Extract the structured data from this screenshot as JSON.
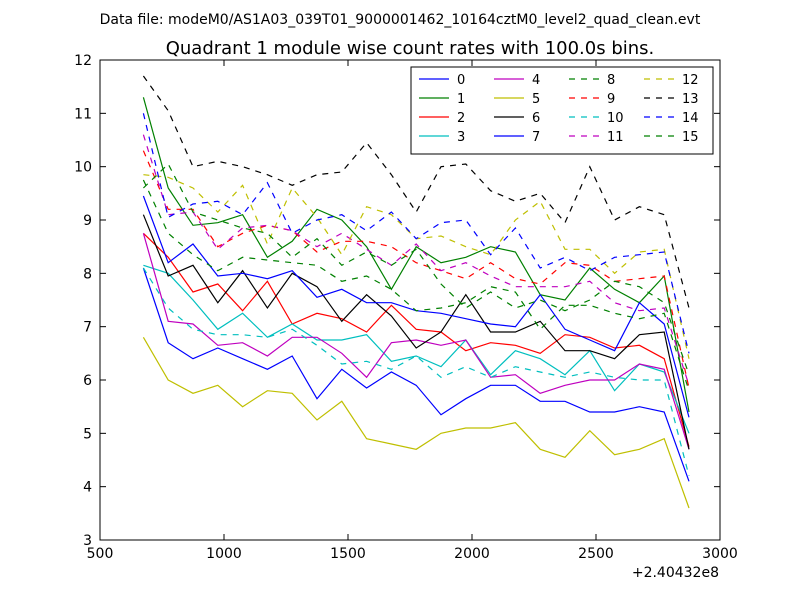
{
  "chart_data": {
    "type": "line",
    "suptitle": "Data file: modeM0/AS1A03_039T01_9000001462_10164cztM0_level2_quad_clean.evt",
    "title": "Quadrant 1 module wise count rates with 100.0s bins.",
    "xlabel": "",
    "ylabel": "",
    "x_offset_label": "+2.40432e8",
    "xlim": [
      500,
      3000
    ],
    "ylim": [
      3,
      12
    ],
    "xticks": [
      500,
      1000,
      1500,
      2000,
      2500,
      3000
    ],
    "yticks": [
      3,
      4,
      5,
      6,
      7,
      8,
      9,
      10,
      11,
      12
    ],
    "grid": false,
    "legend_position": "top-right",
    "x": [
      675,
      775,
      875,
      975,
      1075,
      1175,
      1275,
      1375,
      1475,
      1575,
      1675,
      1775,
      1875,
      1975,
      2075,
      2175,
      2275,
      2375,
      2475,
      2575,
      2675,
      2775,
      2875
    ],
    "series": [
      {
        "name": "0",
        "color": "#0000ff",
        "dash": "solid",
        "values": [
          8.1,
          6.7,
          6.4,
          6.6,
          6.4,
          6.2,
          6.45,
          5.65,
          6.2,
          5.85,
          6.15,
          5.9,
          5.35,
          5.65,
          5.9,
          5.9,
          5.6,
          5.6,
          5.4,
          5.4,
          5.5,
          5.4,
          4.1
        ]
      },
      {
        "name": "1",
        "color": "#008000",
        "dash": "solid",
        "values": [
          11.3,
          9.6,
          8.9,
          8.95,
          9.1,
          8.3,
          8.6,
          9.2,
          9.0,
          8.5,
          7.7,
          8.5,
          8.2,
          8.3,
          8.5,
          8.4,
          7.6,
          7.5,
          8.1,
          7.7,
          7.45,
          7.95,
          5.4
        ]
      },
      {
        "name": "2",
        "color": "#ff0000",
        "dash": "solid",
        "values": [
          8.75,
          8.3,
          7.65,
          7.8,
          7.3,
          7.85,
          7.05,
          7.25,
          7.15,
          6.9,
          7.4,
          6.95,
          6.9,
          6.55,
          6.7,
          6.65,
          6.5,
          6.85,
          6.8,
          6.6,
          6.65,
          6.4,
          4.75
        ]
      },
      {
        "name": "3",
        "color": "#00bfbf",
        "dash": "solid",
        "values": [
          8.15,
          8.0,
          7.5,
          6.95,
          7.25,
          6.8,
          7.05,
          6.75,
          6.75,
          6.85,
          6.35,
          6.45,
          6.25,
          6.75,
          6.1,
          6.55,
          6.4,
          6.1,
          6.55,
          5.8,
          6.3,
          6.15,
          5.0
        ]
      },
      {
        "name": "4",
        "color": "#bf00bf",
        "dash": "solid",
        "values": [
          8.75,
          7.1,
          7.05,
          6.65,
          6.7,
          6.45,
          6.8,
          6.8,
          6.5,
          6.05,
          6.7,
          6.75,
          6.65,
          6.75,
          6.05,
          6.1,
          5.75,
          5.9,
          6.0,
          6.0,
          6.3,
          6.2,
          4.7
        ]
      },
      {
        "name": "5",
        "color": "#bfbf00",
        "dash": "solid",
        "values": [
          6.8,
          6.0,
          5.75,
          5.9,
          5.5,
          5.8,
          5.75,
          5.25,
          5.6,
          4.9,
          4.8,
          4.7,
          5.0,
          5.1,
          5.1,
          5.2,
          4.7,
          4.55,
          5.05,
          4.6,
          4.7,
          4.9,
          3.6
        ]
      },
      {
        "name": "6",
        "color": "#000000",
        "dash": "solid",
        "values": [
          9.1,
          7.95,
          8.15,
          7.45,
          8.05,
          7.35,
          8.0,
          7.75,
          7.1,
          7.6,
          7.2,
          6.6,
          6.9,
          7.6,
          6.9,
          6.9,
          7.1,
          6.55,
          6.55,
          6.4,
          6.85,
          6.9,
          4.7
        ]
      },
      {
        "name": "7",
        "color": "#0000ff",
        "dash": "solid",
        "values": [
          9.45,
          8.2,
          8.55,
          7.95,
          8.0,
          7.9,
          8.05,
          7.55,
          7.7,
          7.45,
          7.45,
          7.3,
          7.25,
          7.15,
          7.05,
          7.0,
          7.6,
          6.95,
          6.75,
          6.55,
          7.45,
          7.05,
          5.3
        ]
      },
      {
        "name": "8",
        "color": "#008000",
        "dash": "dashed",
        "values": [
          9.75,
          8.75,
          8.35,
          8.05,
          8.3,
          8.25,
          8.2,
          8.15,
          7.85,
          7.95,
          7.7,
          7.3,
          7.35,
          7.45,
          7.75,
          7.65,
          6.95,
          7.4,
          7.4,
          7.25,
          7.15,
          7.25,
          5.8
        ]
      },
      {
        "name": "9",
        "color": "#ff0000",
        "dash": "dashed",
        "values": [
          10.3,
          9.2,
          9.2,
          8.5,
          8.75,
          8.9,
          8.8,
          8.4,
          8.6,
          8.6,
          8.5,
          8.2,
          8.05,
          7.9,
          8.2,
          7.9,
          7.8,
          8.2,
          8.15,
          7.85,
          7.9,
          7.95,
          5.85
        ]
      },
      {
        "name": "10",
        "color": "#00bfbf",
        "dash": "dashed",
        "values": [
          8.1,
          7.35,
          6.95,
          6.85,
          6.85,
          6.8,
          6.95,
          6.65,
          6.3,
          6.35,
          6.2,
          6.45,
          6.05,
          6.25,
          6.05,
          6.25,
          6.15,
          6.05,
          6.15,
          6.05,
          6.0,
          6.0,
          4.2
        ]
      },
      {
        "name": "11",
        "color": "#bf00bf",
        "dash": "dashed",
        "values": [
          10.6,
          9.1,
          9.15,
          8.45,
          8.85,
          8.9,
          8.8,
          8.5,
          8.75,
          8.45,
          8.15,
          8.55,
          8.05,
          8.2,
          7.95,
          7.75,
          7.75,
          7.75,
          7.85,
          7.45,
          7.3,
          7.35,
          5.9
        ]
      },
      {
        "name": "12",
        "color": "#bfbf00",
        "dash": "dashed",
        "values": [
          9.85,
          9.8,
          9.6,
          9.15,
          9.65,
          8.55,
          9.6,
          9.05,
          8.35,
          9.25,
          9.1,
          8.65,
          8.7,
          8.5,
          8.35,
          9.0,
          9.35,
          8.45,
          8.45,
          8.0,
          8.4,
          8.45,
          6.4
        ]
      },
      {
        "name": "13",
        "color": "#000000",
        "dash": "dashed",
        "values": [
          11.7,
          11.05,
          10.0,
          10.1,
          10.0,
          9.85,
          9.65,
          9.85,
          9.9,
          10.45,
          9.85,
          9.15,
          10.0,
          10.05,
          9.55,
          9.35,
          9.5,
          8.95,
          10.0,
          9.0,
          9.25,
          9.1,
          7.35
        ]
      },
      {
        "name": "14",
        "color": "#0000ff",
        "dash": "dashed",
        "values": [
          11.0,
          9.05,
          9.3,
          9.35,
          9.1,
          9.7,
          8.75,
          9.0,
          9.1,
          8.8,
          9.15,
          8.65,
          8.95,
          9.0,
          8.35,
          8.85,
          8.1,
          8.3,
          8.05,
          8.3,
          8.35,
          8.4,
          6.5
        ]
      },
      {
        "name": "15",
        "color": "#008000",
        "dash": "dashed",
        "values": [
          9.6,
          10.05,
          9.15,
          9.0,
          8.85,
          8.75,
          8.3,
          8.65,
          8.15,
          8.4,
          8.15,
          8.45,
          7.8,
          7.35,
          7.65,
          7.35,
          7.5,
          7.3,
          7.5,
          7.85,
          7.75,
          7.45,
          6.1
        ]
      }
    ]
  }
}
